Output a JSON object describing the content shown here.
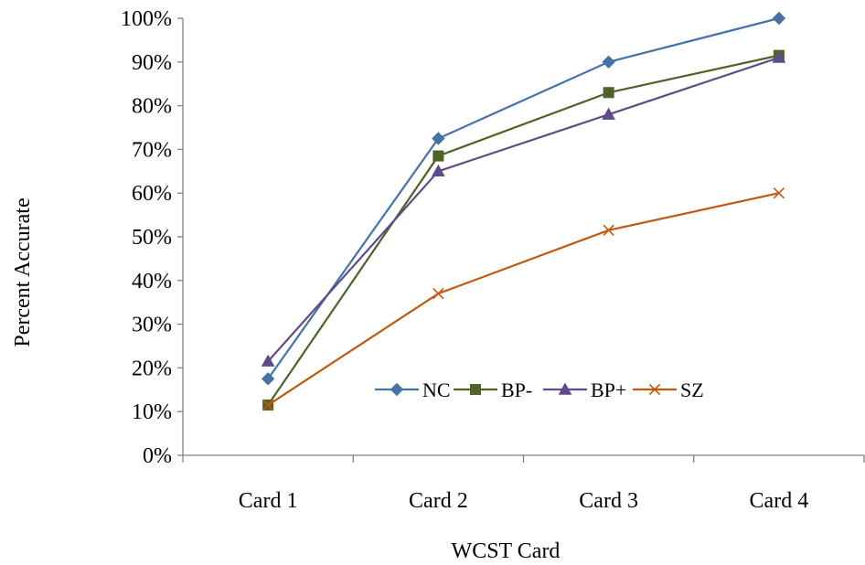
{
  "chart_data": {
    "type": "line",
    "title": "",
    "xlabel": "WCST Card",
    "ylabel": "Percent Accurate",
    "categories": [
      "Card 1",
      "Card 2",
      "Card 3",
      "Card 4"
    ],
    "ylim": [
      0,
      100
    ],
    "yticks": [
      0,
      10,
      20,
      30,
      40,
      50,
      60,
      70,
      80,
      90,
      100
    ],
    "ytick_labels": [
      "0%",
      "10%",
      "20%",
      "30%",
      "40%",
      "50%",
      "60%",
      "70%",
      "80%",
      "90%",
      "100%"
    ],
    "grid": false,
    "legend_position": "inside-bottom-right",
    "series": [
      {
        "name": "NC",
        "marker": "diamond",
        "color": "#4572A7",
        "values": [
          17.5,
          72.5,
          90,
          100
        ]
      },
      {
        "name": "BP-",
        "marker": "square",
        "color": "#4F6228",
        "values": [
          11.5,
          68.5,
          83,
          91.5
        ]
      },
      {
        "name": "BP+",
        "marker": "triangle",
        "color": "#5F4B8B",
        "values": [
          21.5,
          65,
          78,
          91
        ]
      },
      {
        "name": "SZ",
        "marker": "x",
        "color": "#C0580F",
        "values": [
          11.5,
          37,
          51.5,
          60
        ]
      }
    ]
  }
}
